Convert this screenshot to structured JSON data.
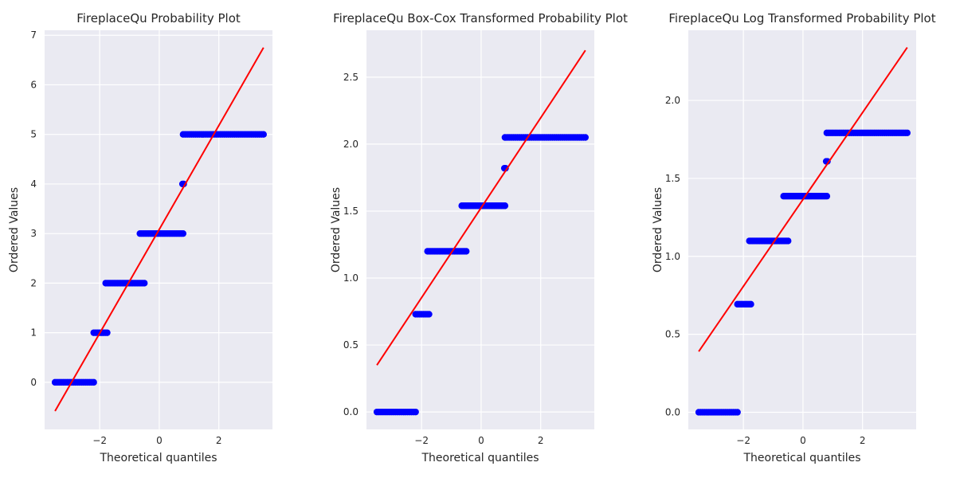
{
  "chart_data": [
    {
      "type": "scatter",
      "title": "FireplaceQu Probability Plot",
      "xlabel": "Theoretical quantiles",
      "ylabel": "Ordered Values",
      "xlim": [
        -3.85,
        3.8
      ],
      "ylim": [
        -0.95,
        7.1
      ],
      "xticks": [
        -2,
        0,
        2
      ],
      "xtick_labels": [
        "−2",
        "0",
        "2"
      ],
      "yticks": [
        0,
        1,
        2,
        3,
        4,
        5,
        6,
        7
      ],
      "ytick_labels": [
        "0",
        "1",
        "2",
        "3",
        "4",
        "5",
        "6",
        "7"
      ],
      "grid": true,
      "background": "#eaeaf2",
      "marker_color": "#0000ff",
      "line_color": "#ff0000",
      "fit_line": {
        "x": [
          -3.5,
          3.5
        ],
        "y": [
          -0.58,
          6.75
        ]
      },
      "point_groups": [
        {
          "y": 0,
          "x_from": -3.5,
          "x_to": -2.2,
          "count": 20
        },
        {
          "y": 1,
          "x_from": -2.2,
          "x_to": -1.75,
          "count": 8
        },
        {
          "y": 2,
          "x_from": -1.8,
          "x_to": -0.5,
          "count": 24
        },
        {
          "y": 3,
          "x_from": -0.65,
          "x_to": 0.8,
          "count": 26
        },
        {
          "y": 4,
          "x_from": 0.78,
          "x_to": 0.82,
          "count": 2
        },
        {
          "y": 5,
          "x_from": 0.8,
          "x_to": 3.5,
          "count": 40
        }
      ]
    },
    {
      "type": "scatter",
      "title": "FireplaceQu Box-Cox Transformed Probability Plot",
      "xlabel": "Theoretical quantiles",
      "ylabel": "Ordered Values",
      "xlim": [
        -3.85,
        3.8
      ],
      "ylim": [
        -0.13,
        2.85
      ],
      "xticks": [
        -2,
        0,
        2
      ],
      "xtick_labels": [
        "−2",
        "0",
        "2"
      ],
      "yticks": [
        0.0,
        0.5,
        1.0,
        1.5,
        2.0,
        2.5
      ],
      "ytick_labels": [
        "0.0",
        "0.5",
        "1.0",
        "1.5",
        "2.0",
        "2.5"
      ],
      "grid": true,
      "background": "#eaeaf2",
      "marker_color": "#0000ff",
      "line_color": "#ff0000",
      "fit_line": {
        "x": [
          -3.5,
          3.5
        ],
        "y": [
          0.35,
          2.7
        ]
      },
      "point_groups": [
        {
          "y": 0.0,
          "x_from": -3.5,
          "x_to": -2.2,
          "count": 20
        },
        {
          "y": 0.73,
          "x_from": -2.2,
          "x_to": -1.75,
          "count": 8
        },
        {
          "y": 1.2,
          "x_from": -1.8,
          "x_to": -0.5,
          "count": 24
        },
        {
          "y": 1.54,
          "x_from": -0.65,
          "x_to": 0.8,
          "count": 26
        },
        {
          "y": 1.82,
          "x_from": 0.78,
          "x_to": 0.82,
          "count": 2
        },
        {
          "y": 2.05,
          "x_from": 0.8,
          "x_to": 3.5,
          "count": 40
        }
      ]
    },
    {
      "type": "scatter",
      "title": "FireplaceQu Log Transformed Probability Plot",
      "xlabel": "Theoretical quantiles",
      "ylabel": "Ordered Values",
      "xlim": [
        -3.85,
        3.8
      ],
      "ylim": [
        -0.11,
        2.45
      ],
      "xticks": [
        -2,
        0,
        2
      ],
      "xtick_labels": [
        "−2",
        "0",
        "2"
      ],
      "yticks": [
        0.0,
        0.5,
        1.0,
        1.5,
        2.0
      ],
      "ytick_labels": [
        "0.0",
        "0.5",
        "1.0",
        "1.5",
        "2.0"
      ],
      "grid": true,
      "background": "#eaeaf2",
      "marker_color": "#0000ff",
      "line_color": "#ff0000",
      "fit_line": {
        "x": [
          -3.5,
          3.5
        ],
        "y": [
          0.39,
          2.34
        ]
      },
      "point_groups": [
        {
          "y": 0.0,
          "x_from": -3.5,
          "x_to": -2.2,
          "count": 20
        },
        {
          "y": 0.693,
          "x_from": -2.2,
          "x_to": -1.75,
          "count": 8
        },
        {
          "y": 1.099,
          "x_from": -1.8,
          "x_to": -0.5,
          "count": 24
        },
        {
          "y": 1.386,
          "x_from": -0.65,
          "x_to": 0.8,
          "count": 26
        },
        {
          "y": 1.609,
          "x_from": 0.78,
          "x_to": 0.82,
          "count": 2
        },
        {
          "y": 1.792,
          "x_from": 0.8,
          "x_to": 3.5,
          "count": 40
        }
      ]
    }
  ]
}
